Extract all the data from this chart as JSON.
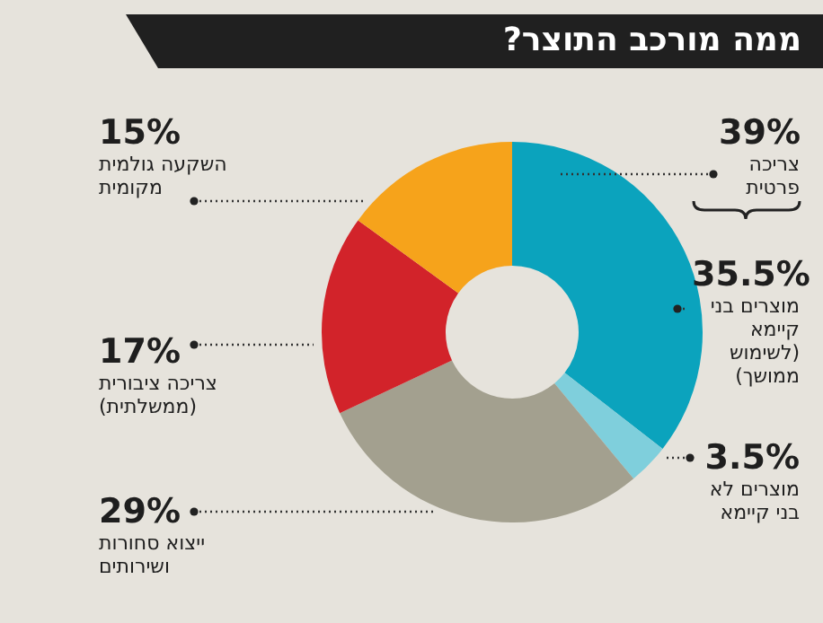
{
  "chart_data": {
    "type": "donut",
    "title": "ממה מורכב התוצר?",
    "categories": [
      "מוצרים בני קיימא (לשימוש ממושך)",
      "מוצרים לא בני קיימא",
      "ייצוא סחורות ושירותים",
      "צריכה ציבורית (ממשלתית)",
      "השקעה גולמית מקומית"
    ],
    "values": [
      35.5,
      3.5,
      29,
      17,
      15
    ],
    "colors": [
      "#0ba3bd",
      "#7fcfdc",
      "#a3a08f",
      "#d2232a",
      "#f6a31b"
    ],
    "value_labels": [
      "35.5%",
      "3.5%",
      "29%",
      "17%",
      "15%"
    ],
    "annotations": [
      "39%",
      "צריכה פרטית"
    ]
  }
}
